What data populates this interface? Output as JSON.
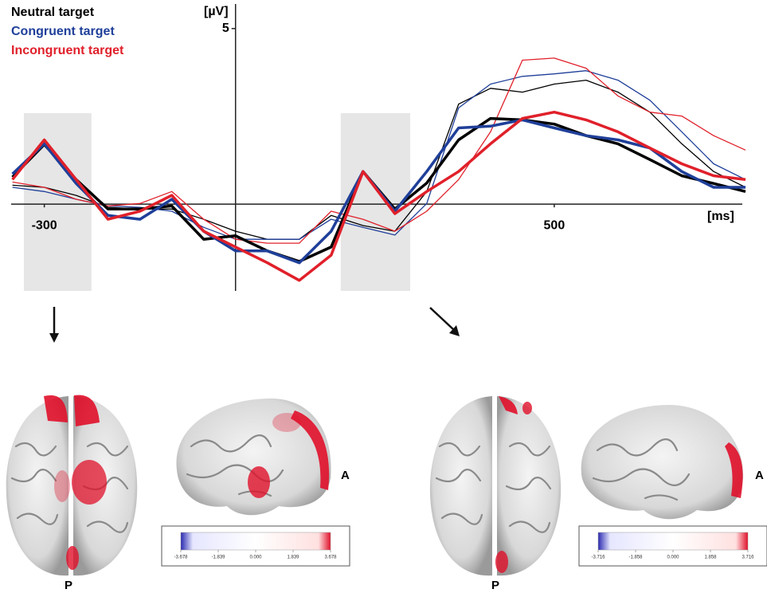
{
  "chart_data": {
    "type": "line",
    "y_label": "[µV]",
    "x_label": "[ms]",
    "xlim": [
      -352,
      795
    ],
    "ylim": [
      -2.47,
      5.7
    ],
    "xticks": [
      -300,
      500
    ],
    "yticks": [
      5
    ],
    "highlights": [
      [
        -332,
        -226
      ],
      [
        165,
        274
      ]
    ],
    "x": [
      -350,
      -300,
      -250,
      -200,
      -150,
      -100,
      -50,
      0,
      50,
      100,
      150,
      200,
      250,
      300,
      350,
      400,
      450,
      500,
      550,
      600,
      650,
      700,
      750,
      800
    ],
    "series": [
      {
        "name": "Neutral target",
        "color": "#000000",
        "width": 3.5,
        "values": [
          0.77,
          1.7,
          0.7,
          -0.14,
          -0.14,
          -0.05,
          -1.0,
          -0.9,
          -1.33,
          -1.63,
          -1.22,
          0.93,
          -0.14,
          0.6,
          1.83,
          2.44,
          2.4,
          2.28,
          1.95,
          1.72,
          1.27,
          0.81,
          0.59,
          0.36
        ]
      },
      {
        "name": "Congruent target",
        "color": "#1f3f99",
        "width": 3.5,
        "values": [
          0.86,
          1.72,
          0.59,
          -0.32,
          -0.43,
          0.14,
          -0.77,
          -1.33,
          -1.33,
          -1.67,
          -0.77,
          0.93,
          -0.2,
          0.93,
          2.17,
          2.22,
          2.4,
          2.17,
          1.95,
          1.83,
          1.6,
          0.93,
          0.48,
          0.48
        ]
      },
      {
        "name": "Incongruent target",
        "color": "#e0202a",
        "width": 3.5,
        "values": [
          0.7,
          1.83,
          0.7,
          -0.43,
          -0.2,
          0.25,
          -0.77,
          -1.22,
          -1.67,
          -2.17,
          -1.45,
          0.93,
          -0.27,
          0.36,
          0.93,
          1.72,
          2.44,
          2.62,
          2.4,
          2.06,
          1.6,
          1.15,
          0.81,
          0.7
        ]
      },
      {
        "color": "#000000",
        "width": 1.3,
        "values": [
          0.54,
          0.48,
          0.25,
          -0.09,
          -0.14,
          -0.14,
          -0.43,
          -0.77,
          -1.0,
          -1.0,
          -0.32,
          -0.61,
          -0.77,
          0.36,
          2.85,
          3.3,
          3.19,
          3.42,
          3.53,
          3.19,
          2.62,
          1.72,
          0.93,
          0.48
        ]
      },
      {
        "color": "#1f3f99",
        "width": 1.3,
        "values": [
          0.48,
          0.36,
          0.14,
          -0.05,
          -0.09,
          -0.2,
          -0.66,
          -1.0,
          -1.0,
          -1.0,
          -0.43,
          -0.66,
          -0.88,
          0.02,
          2.74,
          3.42,
          3.64,
          3.71,
          3.8,
          3.53,
          2.96,
          2.06,
          1.15,
          0.7
        ]
      },
      {
        "color": "#e0202a",
        "width": 1.3,
        "values": [
          0.63,
          0.48,
          0.14,
          -0.05,
          0.02,
          0.36,
          -0.43,
          -1.0,
          -1.11,
          -1.11,
          -0.2,
          -0.43,
          -0.77,
          -0.2,
          0.7,
          2.06,
          4.1,
          4.16,
          3.87,
          3.08,
          2.62,
          2.51,
          1.95,
          1.54
        ]
      }
    ]
  },
  "topomaps": [
    {
      "posterior": "P",
      "anterior": "A",
      "colorbar_ticks": [
        -3.678,
        -1.839,
        {
          "value": 0,
          "label": "0.000"
        },
        1.839,
        3.678
      ]
    },
    {
      "posterior": "P",
      "anterior": "A",
      "colorbar_ticks": [
        -3.716,
        -1.858,
        {
          "value": 0,
          "label": "0.000"
        },
        1.858,
        3.716
      ]
    }
  ]
}
